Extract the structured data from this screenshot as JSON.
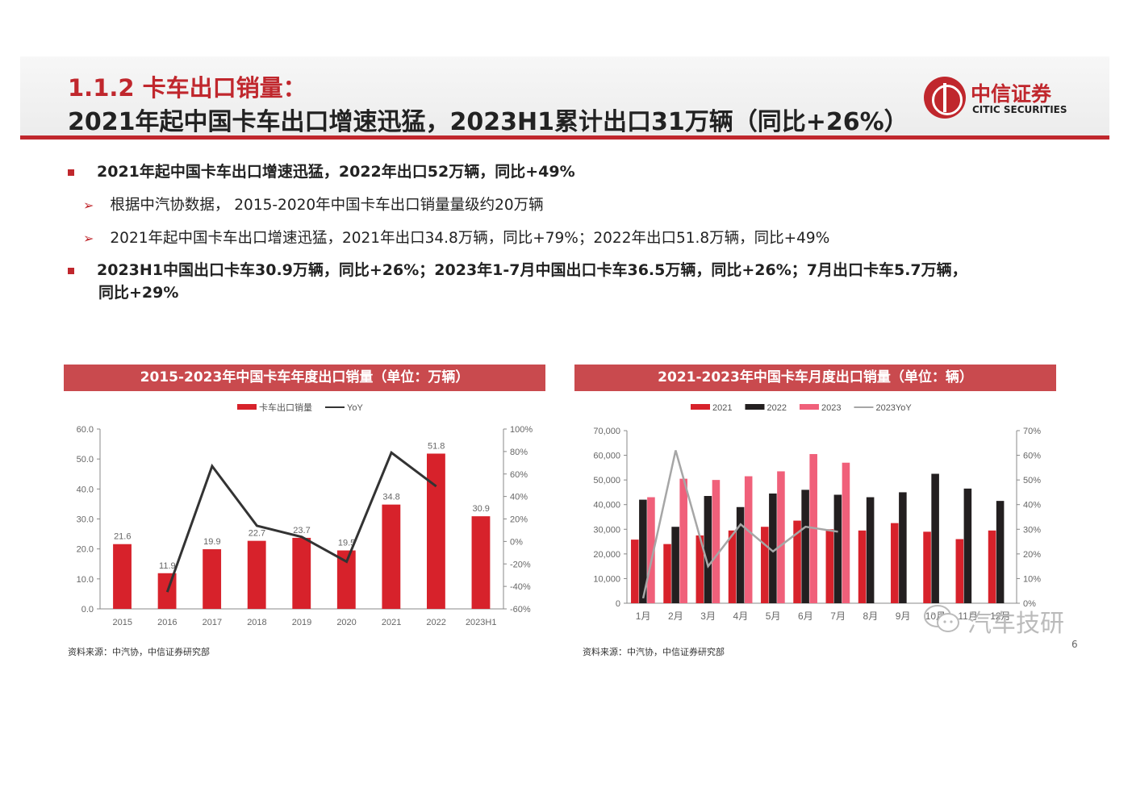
{
  "header": {
    "section_title": "1.1.2 卡车出口销量：",
    "main_title": "2021年起中国卡车出口增速迅猛，2023H1累计出口31万辆（同比+26%）"
  },
  "logo": {
    "cn": "中信证券",
    "en": "CITIC SECURITIES",
    "icon": "citic-logo-icon",
    "color": "#c0272d"
  },
  "bullets": {
    "b1": "2021年起中国卡车出口增速迅猛，2022年出口52万辆，同比+49%",
    "b2": "根据中汽协数据， 2015-2020年中国卡车出口销量量级约20万辆",
    "b3": "2021年起中国卡车出口增速迅猛，2021年出口34.8万辆，同比+79%；2022年出口51.8万辆，同比+49%",
    "b4": "2023H1中国出口卡车30.9万辆，同比+26%；2023年1-7月中国出口卡车36.5万辆，同比+26%；7月出口卡车5.7万辆，",
    "b4_cont": "同比+29%"
  },
  "chart_data": [
    {
      "type": "bar",
      "title": "2015-2023年中国卡车年度出口销量（单位：万辆）",
      "categories": [
        "2015",
        "2016",
        "2017",
        "2018",
        "2019",
        "2020",
        "2021",
        "2022",
        "2023H1"
      ],
      "series": [
        {
          "name": "卡车出口销量",
          "type": "bar",
          "axis": "left",
          "color": "#d7222b",
          "values": [
            21.6,
            11.9,
            19.9,
            22.7,
            23.7,
            19.5,
            34.8,
            51.8,
            30.9
          ]
        },
        {
          "name": "YoY",
          "type": "line",
          "axis": "right",
          "color": "#333333",
          "values": [
            null,
            -45,
            67,
            14,
            4,
            -18,
            79,
            49,
            null
          ]
        }
      ],
      "data_labels": [
        "21.6",
        "11.9",
        "19.9",
        "22.7",
        "23.7",
        "19.5",
        "34.8",
        "51.8",
        "30.9"
      ],
      "ylim": [
        0,
        60
      ],
      "yticks": [
        "0.0",
        "10.0",
        "20.0",
        "30.0",
        "40.0",
        "50.0",
        "60.0"
      ],
      "y2lim": [
        -60,
        100
      ],
      "y2ticks": [
        "-60%",
        "-40%",
        "-20%",
        "0%",
        "20%",
        "40%",
        "60%",
        "80%",
        "100%"
      ],
      "legend_position": "top-center",
      "grid": false
    },
    {
      "type": "bar",
      "title": "2021-2023年中国卡车月度出口销量（单位：辆）",
      "categories": [
        "1月",
        "2月",
        "3月",
        "4月",
        "5月",
        "6月",
        "7月",
        "8月",
        "9月",
        "10月",
        "11月",
        "12月"
      ],
      "series": [
        {
          "name": "2021",
          "type": "bar",
          "axis": "left",
          "color": "#d7222b",
          "values": [
            25800,
            24000,
            27500,
            29500,
            31000,
            33500,
            30000,
            29500,
            32500,
            29000,
            26000,
            29500
          ]
        },
        {
          "name": "2022",
          "type": "bar",
          "axis": "left",
          "color": "#231f20",
          "values": [
            42000,
            31000,
            43500,
            39000,
            44500,
            46000,
            44000,
            43000,
            45000,
            52500,
            46500,
            41500
          ]
        },
        {
          "name": "2023",
          "type": "bar",
          "axis": "left",
          "color": "#f0607a",
          "values": [
            43000,
            50500,
            50000,
            51500,
            53500,
            60500,
            57000,
            null,
            null,
            null,
            null,
            null
          ]
        },
        {
          "name": "2023YoY",
          "type": "line",
          "axis": "right",
          "color": "#a6a6a6",
          "values": [
            0.02,
            0.62,
            0.15,
            0.32,
            0.21,
            0.31,
            0.29,
            null,
            null,
            null,
            null,
            null
          ]
        }
      ],
      "ylim": [
        0,
        70000
      ],
      "yticks": [
        "0",
        "10,000",
        "20,000",
        "30,000",
        "40,000",
        "50,000",
        "60,000",
        "70,000"
      ],
      "y2lim": [
        0,
        0.7
      ],
      "y2ticks": [
        "0%",
        "10%",
        "20%",
        "30%",
        "40%",
        "50%",
        "60%",
        "70%"
      ],
      "legend_position": "top-center",
      "grid": false
    }
  ],
  "sources": {
    "left": "资料来源：中汽协，中信证券研究部",
    "right": "资料来源：中汽协，中信证券研究部"
  },
  "watermark": {
    "text": "汽车技研",
    "icon": "wechat-icon"
  },
  "page_number": "6"
}
